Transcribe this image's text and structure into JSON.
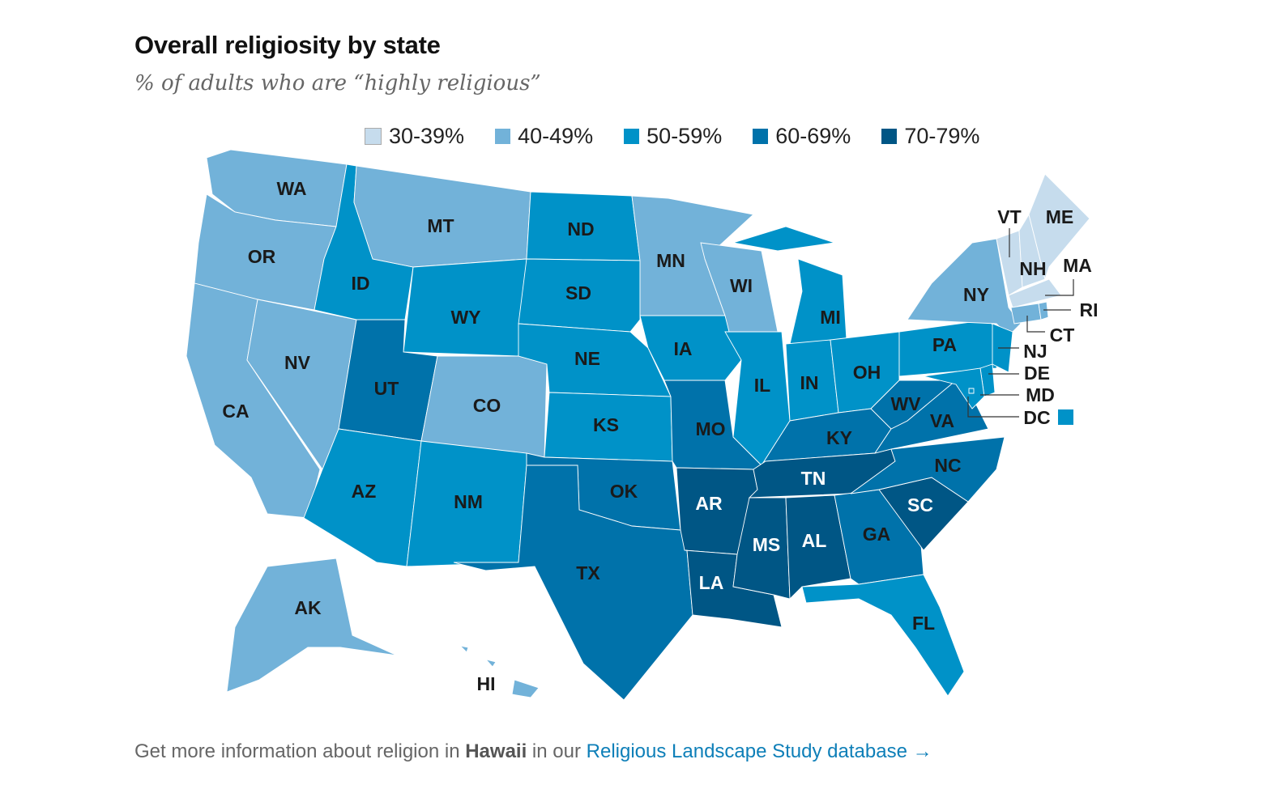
{
  "header": {
    "title": "Overall religiosity by state",
    "subtitle": "% of adults who are “highly religious”"
  },
  "footer": {
    "prefix": "Get more information about religion in",
    "state": "Hawaii",
    "middle": "in our",
    "link": "Religious Landscape Study database →"
  },
  "chart_data": {
    "type": "choropleth",
    "legend": [
      {
        "label": "30-39%",
        "color": "#c6dced"
      },
      {
        "label": "40-49%",
        "color": "#72b2d9"
      },
      {
        "label": "50-59%",
        "color": "#0092c8"
      },
      {
        "label": "60-69%",
        "color": "#0072aa"
      },
      {
        "label": "70-79%",
        "color": "#005685"
      }
    ],
    "states": [
      {
        "abbr": "WA",
        "bin": "40-49%"
      },
      {
        "abbr": "OR",
        "bin": "40-49%"
      },
      {
        "abbr": "CA",
        "bin": "40-49%"
      },
      {
        "abbr": "NV",
        "bin": "40-49%"
      },
      {
        "abbr": "ID",
        "bin": "50-59%"
      },
      {
        "abbr": "MT",
        "bin": "40-49%"
      },
      {
        "abbr": "WY",
        "bin": "50-59%"
      },
      {
        "abbr": "UT",
        "bin": "60-69%"
      },
      {
        "abbr": "CO",
        "bin": "40-49%"
      },
      {
        "abbr": "AZ",
        "bin": "50-59%"
      },
      {
        "abbr": "NM",
        "bin": "50-59%"
      },
      {
        "abbr": "ND",
        "bin": "50-59%"
      },
      {
        "abbr": "SD",
        "bin": "50-59%"
      },
      {
        "abbr": "NE",
        "bin": "50-59%"
      },
      {
        "abbr": "KS",
        "bin": "50-59%"
      },
      {
        "abbr": "OK",
        "bin": "60-69%"
      },
      {
        "abbr": "TX",
        "bin": "60-69%"
      },
      {
        "abbr": "MN",
        "bin": "40-49%"
      },
      {
        "abbr": "IA",
        "bin": "50-59%"
      },
      {
        "abbr": "MO",
        "bin": "60-69%"
      },
      {
        "abbr": "AR",
        "bin": "70-79%"
      },
      {
        "abbr": "LA",
        "bin": "70-79%"
      },
      {
        "abbr": "WI",
        "bin": "40-49%"
      },
      {
        "abbr": "IL",
        "bin": "50-59%"
      },
      {
        "abbr": "MI",
        "bin": "50-59%"
      },
      {
        "abbr": "IN",
        "bin": "50-59%"
      },
      {
        "abbr": "OH",
        "bin": "50-59%"
      },
      {
        "abbr": "KY",
        "bin": "60-69%"
      },
      {
        "abbr": "TN",
        "bin": "70-79%"
      },
      {
        "abbr": "MS",
        "bin": "70-79%"
      },
      {
        "abbr": "AL",
        "bin": "70-79%"
      },
      {
        "abbr": "GA",
        "bin": "60-69%"
      },
      {
        "abbr": "FL",
        "bin": "50-59%"
      },
      {
        "abbr": "SC",
        "bin": "70-79%"
      },
      {
        "abbr": "NC",
        "bin": "60-69%"
      },
      {
        "abbr": "VA",
        "bin": "60-69%"
      },
      {
        "abbr": "WV",
        "bin": "60-69%"
      },
      {
        "abbr": "PA",
        "bin": "50-59%"
      },
      {
        "abbr": "NY",
        "bin": "40-49%"
      },
      {
        "abbr": "NJ",
        "bin": "50-59%"
      },
      {
        "abbr": "DE",
        "bin": "50-59%"
      },
      {
        "abbr": "MD",
        "bin": "50-59%"
      },
      {
        "abbr": "DC",
        "bin": "50-59%"
      },
      {
        "abbr": "VT",
        "bin": "30-39%"
      },
      {
        "abbr": "NH",
        "bin": "30-39%"
      },
      {
        "abbr": "ME",
        "bin": "30-39%"
      },
      {
        "abbr": "MA",
        "bin": "30-39%"
      },
      {
        "abbr": "CT",
        "bin": "40-49%"
      },
      {
        "abbr": "RI",
        "bin": "40-49%"
      },
      {
        "abbr": "AK",
        "bin": "40-49%"
      },
      {
        "abbr": "HI",
        "bin": "40-49%"
      }
    ]
  }
}
